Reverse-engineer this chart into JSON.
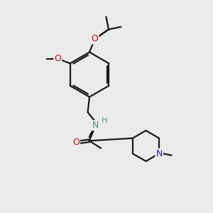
{
  "background_color": "#ebebeb",
  "bond_color": "#1a1a1a",
  "oxygen_color": "#dd0000",
  "nitrogen_color": "#2222cc",
  "nitrogen_h_color": "#4a9090",
  "line_width": 1.6,
  "dbo": 0.055,
  "figsize": [
    3.0,
    3.0
  ],
  "dpi": 100,
  "xlim": [
    0,
    10
  ],
  "ylim": [
    0,
    10
  ]
}
